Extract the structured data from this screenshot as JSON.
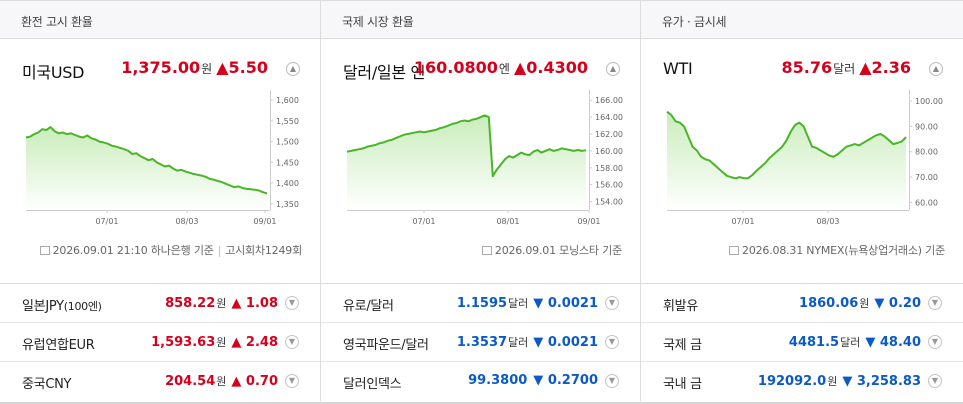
{
  "colors": {
    "up": "#d6001c",
    "down": "#0b5ac7",
    "line": "#49b527",
    "fill_top": "#c9edbb"
  },
  "panels": [
    {
      "header": "환전 고시 환율",
      "main": {
        "name": "미국USD",
        "price": "1,375.00",
        "unit": "원",
        "change": "5.50",
        "direction": "up",
        "arrow": "▲"
      },
      "source": {
        "text": "2026.09.01 21:10 하나은행 기준",
        "extra": "고시회차1249회"
      },
      "chart_data": {
        "type": "area",
        "title": "",
        "x_ticks": [
          "07/01",
          "08/03",
          "09/01"
        ],
        "y_ticks": [
          "1,600",
          "1,550",
          "1,500",
          "1,450",
          "1,400",
          "1,350"
        ],
        "ylim": [
          1335,
          1610
        ],
        "series": [
          {
            "values": [
              1510,
              1512,
              1518,
              1522,
              1530,
              1528,
              1535,
              1525,
              1520,
              1522,
              1518,
              1520,
              1516,
              1512,
              1510,
              1515,
              1508,
              1505,
              1500,
              1498,
              1495,
              1490,
              1488,
              1485,
              1482,
              1478,
              1470,
              1472,
              1465,
              1460,
              1455,
              1458,
              1450,
              1445,
              1440,
              1442,
              1435,
              1430,
              1432,
              1428,
              1425,
              1422,
              1420,
              1418,
              1415,
              1410,
              1408,
              1405,
              1402,
              1398,
              1394,
              1390,
              1392,
              1388,
              1386,
              1385,
              1384,
              1382,
              1378,
              1375
            ]
          }
        ]
      },
      "rows": [
        {
          "name": "일본JPY",
          "sub": "(100엔)",
          "price": "858.22",
          "unit": "원",
          "change": "1.08",
          "direction": "up",
          "arrow": "▲"
        },
        {
          "name": "유럽연합EUR",
          "sub": "",
          "price": "1,593.63",
          "unit": "원",
          "change": "2.48",
          "direction": "up",
          "arrow": "▲"
        },
        {
          "name": "중국CNY",
          "sub": "",
          "price": "204.54",
          "unit": "원",
          "change": "0.70",
          "direction": "up",
          "arrow": "▲"
        }
      ]
    },
    {
      "header": "국제 시장 환율",
      "main": {
        "name": "달러/일본 엔",
        "price": "160.0800",
        "unit": "엔",
        "change": "0.4300",
        "direction": "up",
        "arrow": "▲"
      },
      "source": {
        "text": "2026.09.01 모닝스타 기준",
        "extra": ""
      },
      "chart_data": {
        "type": "area",
        "title": "",
        "x_ticks": [
          "07/01",
          "08/01",
          "09/01"
        ],
        "y_ticks": [
          "166.00",
          "164.00",
          "162.00",
          "160.00",
          "158.00",
          "156.00",
          "154.00"
        ],
        "ylim": [
          153.0,
          166.5
        ],
        "series": [
          {
            "values": [
              159.9,
              160.0,
              160.1,
              160.2,
              160.3,
              160.5,
              160.6,
              160.7,
              160.9,
              161.0,
              161.2,
              161.3,
              161.5,
              161.7,
              161.9,
              162.0,
              162.1,
              162.2,
              162.3,
              162.2,
              162.3,
              162.4,
              162.5,
              162.7,
              162.8,
              163.0,
              163.2,
              163.3,
              163.5,
              163.6,
              163.5,
              163.7,
              163.8,
              164.0,
              164.2,
              164.0,
              157.0,
              157.8,
              158.4,
              159.0,
              159.4,
              159.2,
              159.5,
              159.8,
              159.6,
              159.5,
              159.9,
              160.1,
              159.8,
              160.0,
              160.2,
              160.0,
              160.1,
              160.3,
              160.2,
              160.1,
              160.0,
              160.1,
              160.0,
              160.08
            ]
          }
        ]
      },
      "rows": [
        {
          "name": "유로/달러",
          "sub": "",
          "price": "1.1595",
          "unit": "달러",
          "change": "0.0021",
          "direction": "down",
          "arrow": "▼"
        },
        {
          "name": "영국파운드/달러",
          "sub": "",
          "price": "1.3537",
          "unit": "달러",
          "change": "0.0021",
          "direction": "down",
          "arrow": "▼"
        },
        {
          "name": "달러인덱스",
          "sub": "",
          "price": "99.3800",
          "unit": "",
          "change": "0.2700",
          "direction": "down",
          "arrow": "▼"
        }
      ]
    },
    {
      "header": "유가 · 금시세",
      "main": {
        "name": "WTI",
        "price": "85.76",
        "unit": "달러",
        "change": "2.36",
        "direction": "up",
        "arrow": "▲"
      },
      "source": {
        "text": "2026.08.31 NYMEX(뉴욕상업거래소) 기준",
        "extra": ""
      },
      "chart_data": {
        "type": "area",
        "title": "",
        "x_ticks": [
          "07/01",
          "08/03"
        ],
        "y_ticks": [
          "100.00",
          "90.00",
          "80.00",
          "70.00",
          "60.00"
        ],
        "ylim": [
          57,
          102
        ],
        "series": [
          {
            "values": [
              95.8,
              94.5,
              92.0,
              91.5,
              90.0,
              86.0,
              82.0,
              80.5,
              78.0,
              77.0,
              76.5,
              75.0,
              73.5,
              72.0,
              70.5,
              70.0,
              69.5,
              70.0,
              69.5,
              69.6,
              70.8,
              72.5,
              74.0,
              75.5,
              77.5,
              79.0,
              80.5,
              82.0,
              84.5,
              88.0,
              90.5,
              91.5,
              90.0,
              86.0,
              82.0,
              81.5,
              80.5,
              79.5,
              78.5,
              78.0,
              79.0,
              80.5,
              82.0,
              82.5,
              83.0,
              82.5,
              83.5,
              84.5,
              85.5,
              86.5,
              87.0,
              86.0,
              84.5,
              83.0,
              83.5,
              84.0,
              85.76
            ]
          }
        ]
      },
      "rows": [
        {
          "name": "휘발유",
          "sub": "",
          "price": "1860.06",
          "unit": "원",
          "change": "0.20",
          "direction": "down",
          "arrow": "▼"
        },
        {
          "name": "국제 금",
          "sub": "",
          "price": "4481.5",
          "unit": "달러",
          "change": "48.40",
          "direction": "down",
          "arrow": "▼"
        },
        {
          "name": "국내 금",
          "sub": "",
          "price": "192092.0",
          "unit": "원",
          "change": "3,258.83",
          "direction": "down",
          "arrow": "▼"
        }
      ]
    }
  ]
}
